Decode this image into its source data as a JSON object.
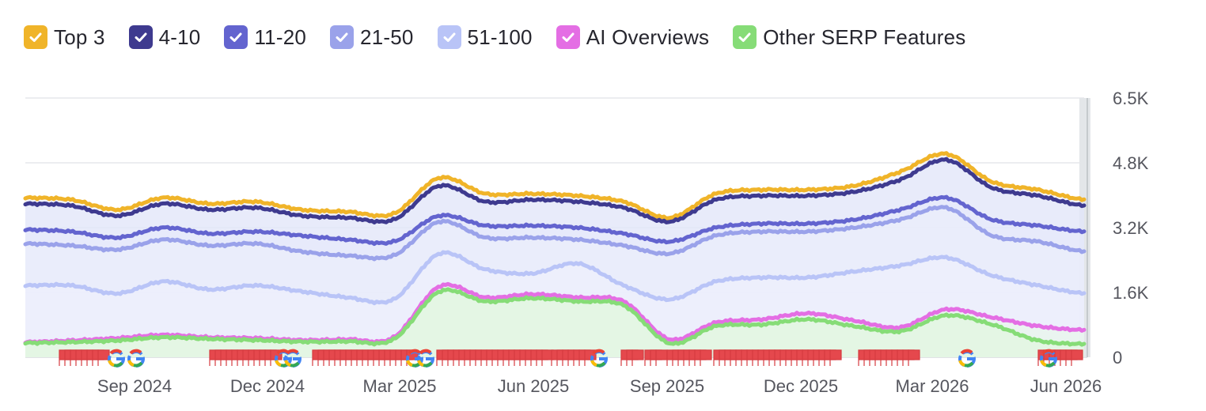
{
  "chart_data": {
    "type": "area",
    "x_axis": {
      "start": "2024-07",
      "end": "2026-06",
      "tick_labels": [
        "Sep 2024",
        "Dec 2024",
        "Mar 2025",
        "Jun 2025",
        "Sep 2025",
        "Dec 2025",
        "Mar 2026",
        "Jun 2026"
      ]
    },
    "y_axis": {
      "tick_labels": [
        "0",
        "1.6K",
        "3.2K",
        "4.8K",
        "6.5K"
      ],
      "ylim": [
        0,
        6500
      ],
      "position": "right"
    },
    "grid": true,
    "legend_position": "top-left",
    "x": [
      "Jul 2024",
      "Aug 2024",
      "Sep 2024",
      "Oct 2024",
      "Nov 2024",
      "Dec 2024",
      "Jan 2025",
      "Feb 2025",
      "Mar 2025",
      "Apr 2025",
      "May 2025",
      "Jun 2025",
      "Jul 2025",
      "Aug 2025",
      "Sep 2025",
      "Oct 2025",
      "Nov 2025",
      "Dec 2025",
      "Jan 2026",
      "Feb 2026",
      "Mar 2026",
      "Apr 2026",
      "May 2026",
      "Jun 2026"
    ],
    "series": [
      {
        "name": "Top 3",
        "color": "#f0b429",
        "checked": true,
        "values": [
          4000,
          3950,
          3700,
          4000,
          3850,
          3900,
          3700,
          3650,
          3600,
          4500,
          4100,
          4100,
          4050,
          3900,
          3500,
          4100,
          4200,
          4200,
          4300,
          4650,
          5100,
          4400,
          4200,
          3950
        ]
      },
      {
        "name": "4-10",
        "color": "#3e3a8f",
        "checked": true,
        "values": [
          3850,
          3800,
          3550,
          3850,
          3700,
          3750,
          3550,
          3500,
          3450,
          4300,
          3900,
          3950,
          3900,
          3750,
          3400,
          3950,
          4050,
          4050,
          4150,
          4450,
          4950,
          4250,
          4050,
          3800
        ]
      },
      {
        "name": "11-20",
        "color": "#6364cf",
        "checked": true,
        "values": [
          3200,
          3150,
          3000,
          3250,
          3100,
          3150,
          3050,
          2950,
          2900,
          3550,
          3300,
          3300,
          3250,
          3100,
          2900,
          3250,
          3350,
          3350,
          3450,
          3700,
          4000,
          3450,
          3300,
          3150
        ]
      },
      {
        "name": "21-50",
        "color": "#9aa2ea",
        "checked": true,
        "values": [
          2850,
          2800,
          2700,
          2950,
          2800,
          2850,
          2650,
          2550,
          2550,
          3400,
          3000,
          3000,
          2950,
          2800,
          2600,
          3050,
          3150,
          3150,
          3250,
          3450,
          3750,
          3050,
          2900,
          2650
        ]
      },
      {
        "name": "51-100",
        "color": "#b9c4f7",
        "checked": true,
        "values": [
          1800,
          1800,
          1600,
          1900,
          1700,
          1800,
          1650,
          1500,
          1450,
          2600,
          2200,
          2100,
          2350,
          1800,
          1450,
          1900,
          2000,
          2000,
          2150,
          2300,
          2500,
          2050,
          1800,
          1600
        ]
      },
      {
        "name": "AI Overviews",
        "color": "#e46ee4",
        "checked": true,
        "values": [
          380,
          420,
          480,
          560,
          500,
          480,
          430,
          450,
          500,
          1780,
          1500,
          1580,
          1500,
          1400,
          450,
          870,
          950,
          1100,
          920,
          750,
          1200,
          1000,
          780,
          680
        ]
      },
      {
        "name": "Other SERP Features",
        "color": "#86dc77",
        "checked": true,
        "values": [
          360,
          380,
          420,
          500,
          460,
          430,
          390,
          400,
          450,
          1650,
          1400,
          1480,
          1400,
          1300,
          350,
          780,
          820,
          950,
          780,
          650,
          1050,
          820,
          420,
          330
        ]
      }
    ]
  }
}
